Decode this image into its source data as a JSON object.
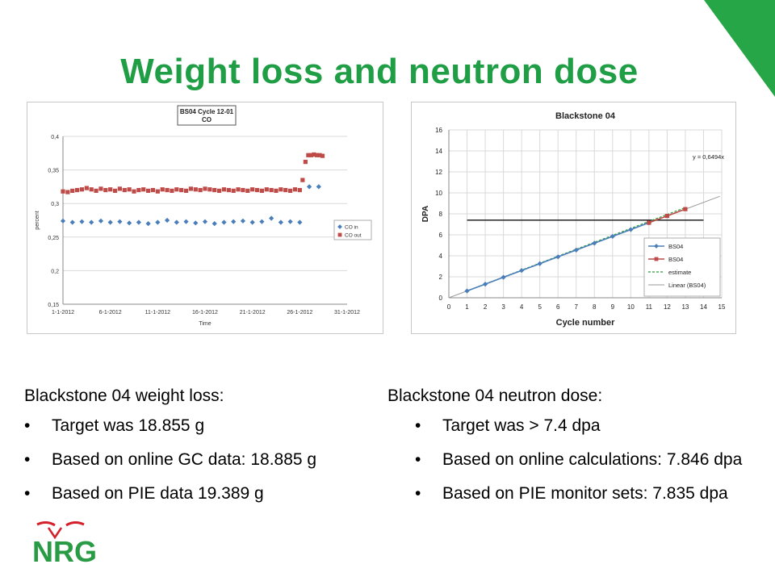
{
  "slide": {
    "title": "Weight loss and neutron dose",
    "left": {
      "heading": "Blackstone 04 weight loss:",
      "bullets": [
        "Target was 18.855 g",
        "Based on online GC data: 18.885 g",
        "Based on PIE data 19.389 g"
      ]
    },
    "right": {
      "heading": "Blackstone 04 neutron dose:",
      "bullets": [
        "Target was > 7.4 dpa",
        "Based on online calculations: 7.846 dpa",
        "Based on PIE monitor sets: 7.835 dpa"
      ]
    },
    "bullet_char": "•",
    "logo_text": "NRG",
    "colors": {
      "title": "#1f9e45",
      "corner": "#26a646",
      "logo_green": "#2a9b45",
      "logo_red": "#d4202a"
    }
  },
  "chart_data": [
    {
      "type": "scatter",
      "title": "BS04 Cycle 12-01",
      "subtitle": "CO",
      "xlabel": "Time",
      "ylabel": "percent",
      "ylim": [
        0.15,
        0.4
      ],
      "y_ticks": [
        "0,15",
        "0,2",
        "0,25",
        "0,3",
        "0,35",
        "0,4"
      ],
      "x_ticks": [
        "1-1-2012",
        "6-1-2012",
        "11-1-2012",
        "16-1-2012",
        "21-1-2012",
        "26-1-2012",
        "31-1-2012"
      ],
      "xlim_days": [
        1,
        31
      ],
      "grid": true,
      "legend": "right",
      "series": [
        {
          "name": "CO in",
          "color": "#4a7ebb",
          "marker": "diamond",
          "x": [
            1.0,
            2.0,
            3.0,
            4.0,
            5.0,
            6.0,
            7.0,
            8.0,
            9.0,
            10.0,
            11.0,
            12.0,
            13.0,
            14.0,
            15.0,
            16.0,
            17.0,
            18.0,
            19.0,
            20.0,
            21.0,
            22.0,
            23.0,
            24.0,
            25.0,
            26.0,
            27.0,
            28.0
          ],
          "y": [
            0.274,
            0.272,
            0.273,
            0.272,
            0.274,
            0.272,
            0.273,
            0.271,
            0.272,
            0.27,
            0.272,
            0.275,
            0.272,
            0.273,
            0.271,
            0.273,
            0.27,
            0.272,
            0.273,
            0.274,
            0.272,
            0.273,
            0.278,
            0.272,
            0.273,
            0.272,
            0.325,
            0.325
          ]
        },
        {
          "name": "CO out",
          "color": "#be4b48",
          "marker": "square",
          "x": [
            1.0,
            1.5,
            2.0,
            2.5,
            3.0,
            3.5,
            4.0,
            4.5,
            5.0,
            5.5,
            6.0,
            6.5,
            7.0,
            7.5,
            8.0,
            8.5,
            9.0,
            9.5,
            10.0,
            10.5,
            11.0,
            11.5,
            12.0,
            12.5,
            13.0,
            13.5,
            14.0,
            14.5,
            15.0,
            15.5,
            16.0,
            16.5,
            17.0,
            17.5,
            18.0,
            18.5,
            19.0,
            19.5,
            20.0,
            20.5,
            21.0,
            21.5,
            22.0,
            22.5,
            23.0,
            23.5,
            24.0,
            24.5,
            25.0,
            25.5,
            26.0,
            26.3,
            26.6,
            26.9,
            27.2,
            27.5,
            27.8,
            28.1,
            28.4
          ],
          "y": [
            0.318,
            0.317,
            0.319,
            0.32,
            0.321,
            0.323,
            0.321,
            0.319,
            0.322,
            0.32,
            0.321,
            0.319,
            0.322,
            0.32,
            0.321,
            0.318,
            0.32,
            0.321,
            0.319,
            0.32,
            0.318,
            0.321,
            0.32,
            0.319,
            0.321,
            0.32,
            0.319,
            0.322,
            0.321,
            0.32,
            0.322,
            0.321,
            0.32,
            0.319,
            0.321,
            0.32,
            0.319,
            0.321,
            0.32,
            0.319,
            0.321,
            0.32,
            0.319,
            0.321,
            0.32,
            0.319,
            0.321,
            0.32,
            0.319,
            0.321,
            0.32,
            0.335,
            0.362,
            0.372,
            0.372,
            0.373,
            0.372,
            0.372,
            0.371
          ]
        }
      ]
    },
    {
      "type": "line",
      "title": "Blackstone 04",
      "xlabel": "Cycle number",
      "ylabel": "DPA",
      "xlim": [
        0,
        15
      ],
      "ylim": [
        0,
        16
      ],
      "x_ticks": [
        "0",
        "1",
        "2",
        "3",
        "4",
        "5",
        "6",
        "7",
        "8",
        "9",
        "10",
        "11",
        "12",
        "13",
        "14",
        "15"
      ],
      "y_ticks": [
        "0",
        "2",
        "4",
        "6",
        "8",
        "10",
        "12",
        "14",
        "16"
      ],
      "grid": true,
      "legend": "right",
      "annotation": "y = 0,6494x",
      "target_line": {
        "y": 7.4,
        "x": [
          1,
          14
        ]
      },
      "series": [
        {
          "name": "BS04",
          "color": "#4a7ebb",
          "marker": "diamond",
          "x": [
            1,
            2,
            3,
            4,
            5,
            6,
            7,
            8,
            9,
            10,
            11
          ],
          "y": [
            0.65,
            1.3,
            1.95,
            2.6,
            3.25,
            3.9,
            4.55,
            5.2,
            5.85,
            6.5,
            7.15
          ]
        },
        {
          "name": "BS04",
          "color": "#be4b48",
          "marker": "square",
          "x": [
            11,
            12,
            13
          ],
          "y": [
            7.15,
            7.8,
            8.45
          ]
        },
        {
          "name": "estimate",
          "color": "#2e9e3e",
          "style": "dashed",
          "x": [
            1,
            13
          ],
          "y": [
            0.65,
            8.6
          ]
        },
        {
          "name": "Linear (BS04)",
          "color": "#9a9a9a",
          "style": "trend",
          "slope": 0.6494,
          "x": [
            0,
            15
          ]
        }
      ]
    }
  ]
}
